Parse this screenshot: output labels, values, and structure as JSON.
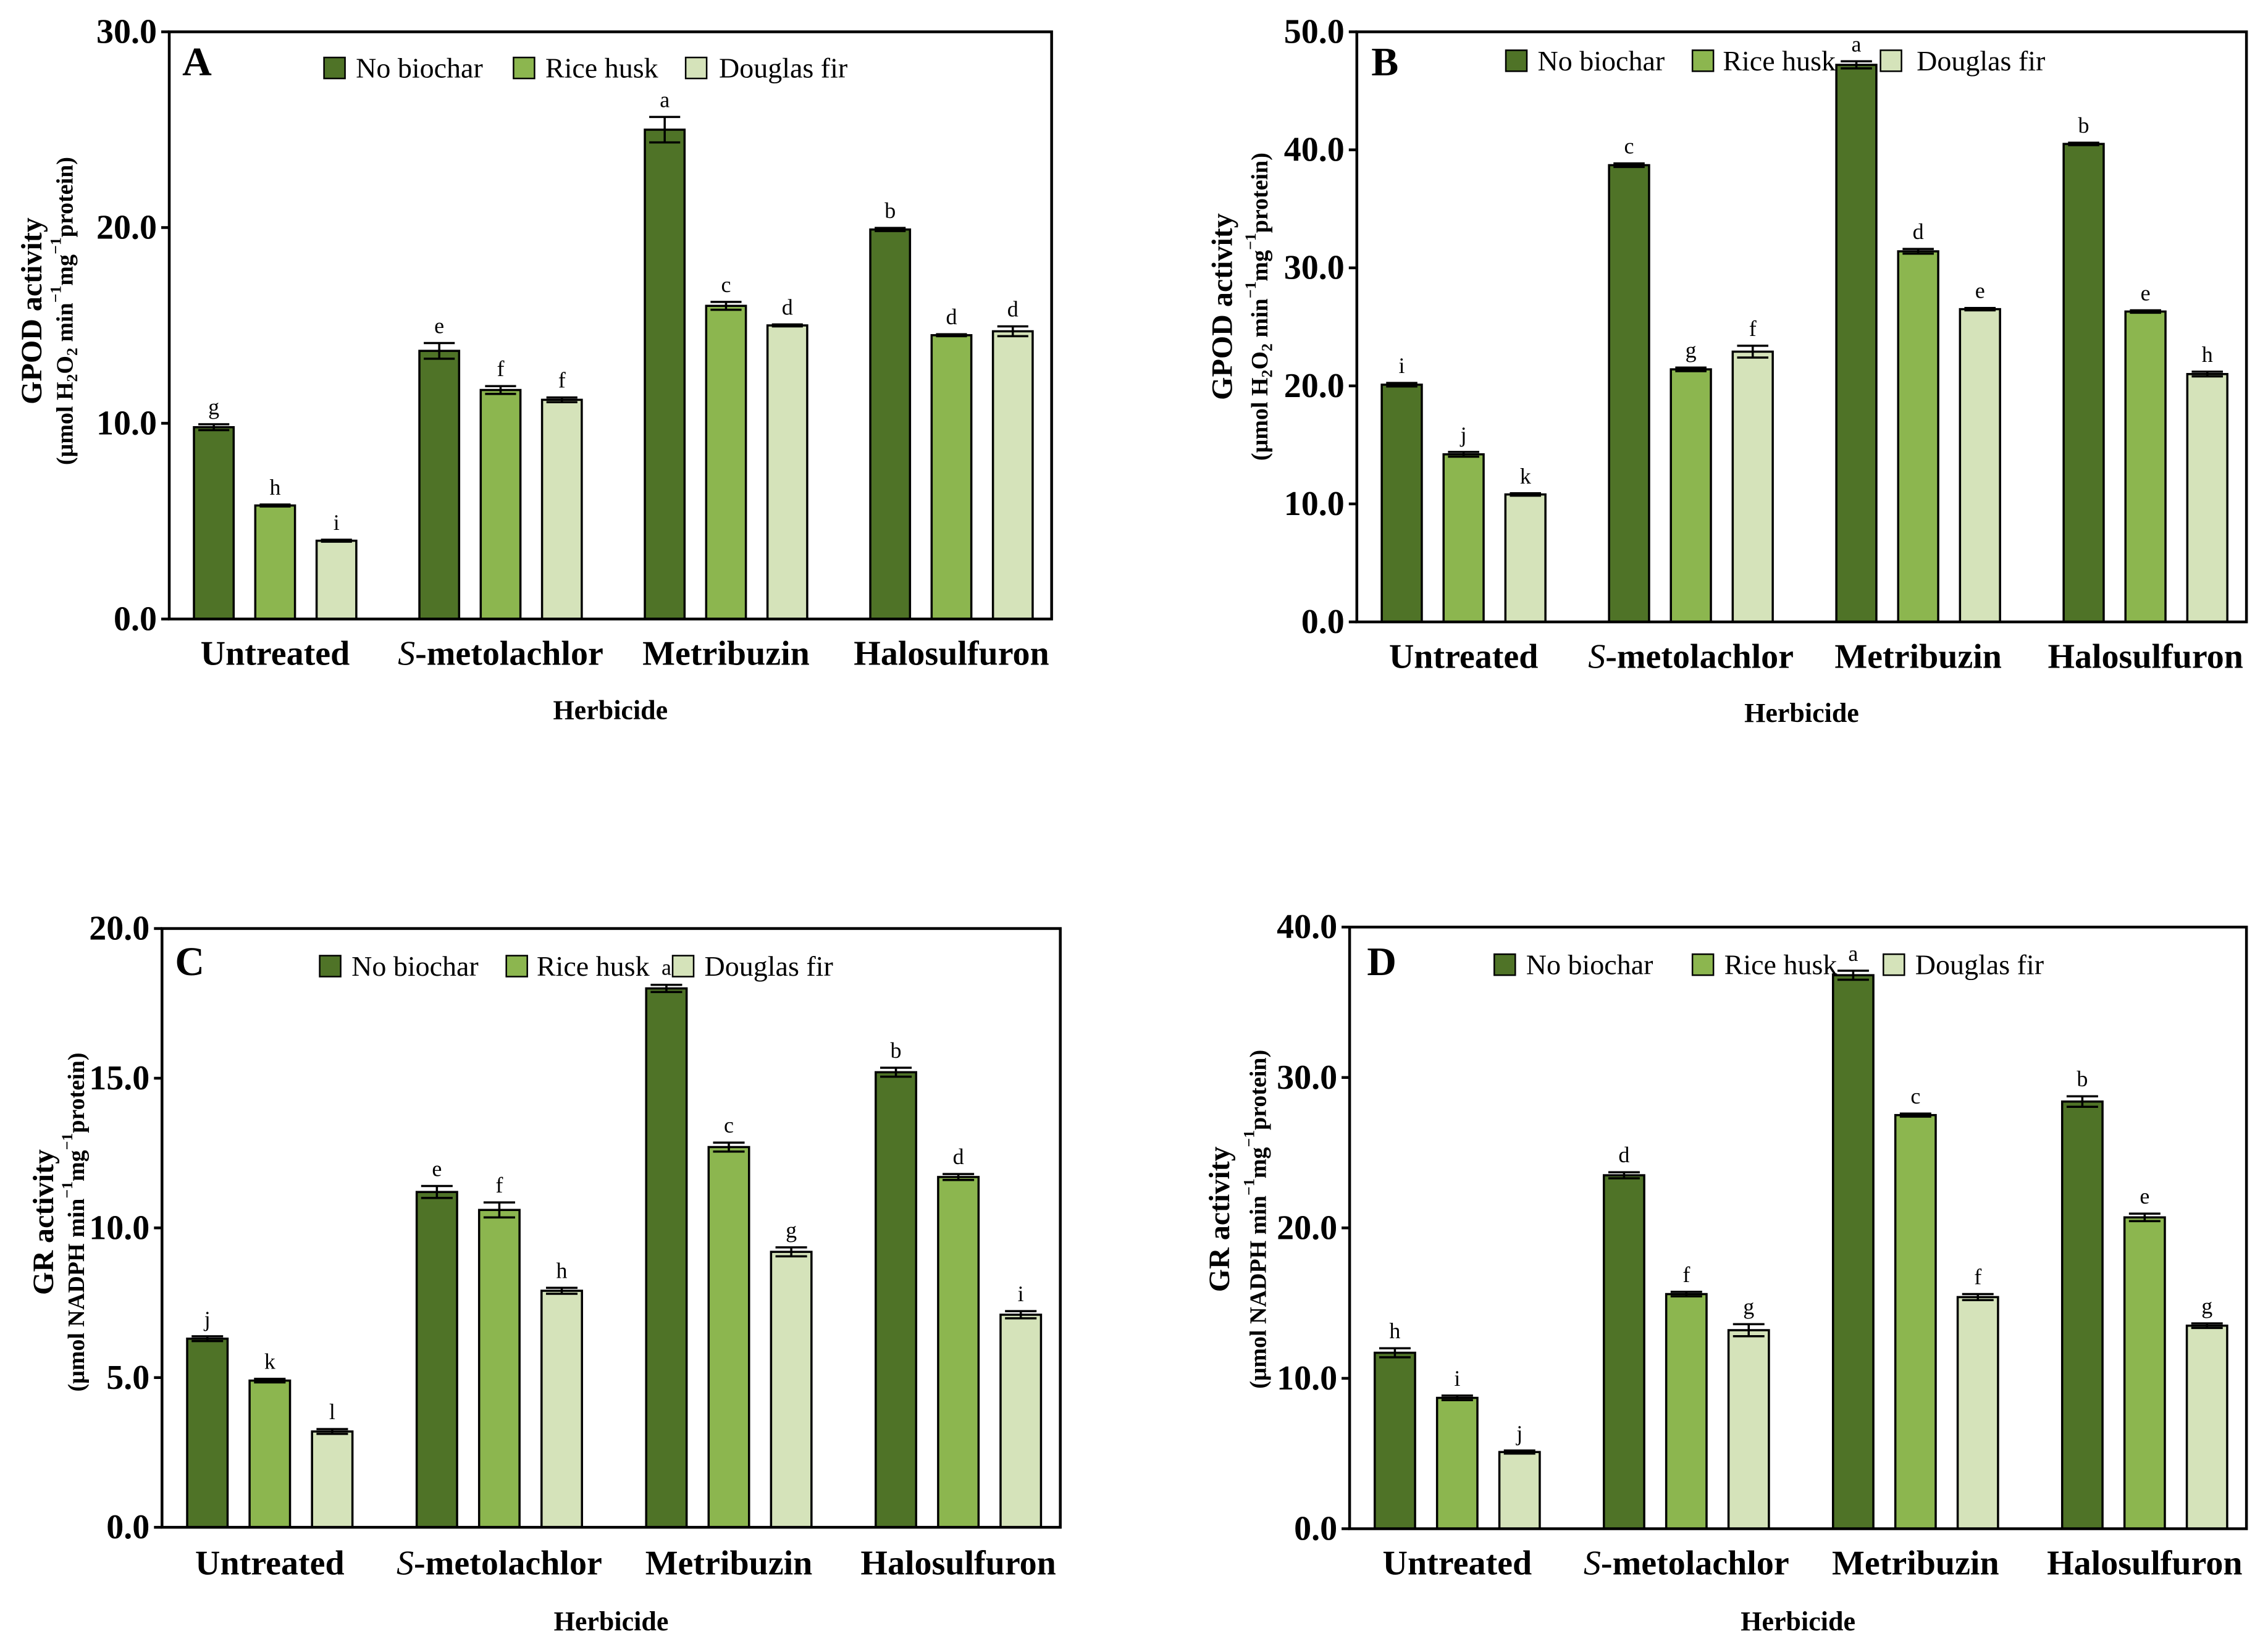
{
  "chart_data": [
    {
      "panel": "A",
      "type": "bar",
      "legend_position": "top",
      "categories": [
        "Untreated",
        "S-metolachlor",
        "Metribuzin",
        "Halosulfuron"
      ],
      "xlabel": "Herbicide",
      "ylabel": "GPOD activity",
      "ylabel_units": [
        {
          "text": "(μmol H"
        },
        {
          "text": "2",
          "sub": true
        },
        {
          "text": "O"
        },
        {
          "text": "2",
          "sub": true
        },
        {
          "text": " min"
        },
        {
          "text": "−1",
          "sup": true
        },
        {
          "text": "mg"
        },
        {
          "text": "−1",
          "sup": true
        },
        {
          "text": "protein)"
        }
      ],
      "ylim": [
        0,
        30
      ],
      "yticks": [
        0,
        10,
        20,
        30
      ],
      "ytick_labels": [
        "0.0",
        "10.0",
        "20.0",
        "30.0"
      ],
      "series": [
        {
          "name": "No biochar",
          "color": "#4f7327",
          "values": [
            9.8,
            13.7,
            25.0,
            19.9
          ],
          "errors": [
            0.15,
            0.4,
            0.65,
            0.08
          ],
          "letters": [
            "g",
            "e",
            "a",
            "b"
          ]
        },
        {
          "name": "Rice husk",
          "color": "#8cb64f",
          "values": [
            5.8,
            11.7,
            16.0,
            14.5
          ],
          "errors": [
            0.05,
            0.2,
            0.2,
            0.05
          ],
          "letters": [
            "h",
            "f",
            "c",
            "d"
          ]
        },
        {
          "name": "Douglas fir",
          "color": "#d5e3ba",
          "values": [
            4.0,
            11.2,
            15.0,
            14.7
          ],
          "errors": [
            0.05,
            0.12,
            0.05,
            0.25
          ],
          "letters": [
            "i",
            "f",
            "d",
            "d"
          ]
        }
      ]
    },
    {
      "panel": "B",
      "type": "bar",
      "legend_position": "top",
      "categories": [
        "Untreated",
        "S-metolachlor",
        "Metribuzin",
        "Halosulfuron"
      ],
      "xlabel": "Herbicide",
      "ylabel": "GPOD activity",
      "ylabel_units": [
        {
          "text": "(μmol H"
        },
        {
          "text": "2",
          "sub": true
        },
        {
          "text": "O"
        },
        {
          "text": "2",
          "sub": true
        },
        {
          "text": " min"
        },
        {
          "text": "−1",
          "sup": true
        },
        {
          "text": "mg"
        },
        {
          "text": "−1",
          "sup": true
        },
        {
          "text": "protein)"
        }
      ],
      "ylim": [
        0,
        50
      ],
      "yticks": [
        0,
        10,
        20,
        30,
        40,
        50
      ],
      "ytick_labels": [
        "0.0",
        "10.0",
        "20.0",
        "30.0",
        "40.0",
        "50.0"
      ],
      "series": [
        {
          "name": "No biochar",
          "color": "#4f7327",
          "values": [
            20.1,
            38.7,
            47.2,
            40.5
          ],
          "errors": [
            0.15,
            0.15,
            0.3,
            0.1
          ],
          "letters": [
            "i",
            "c",
            "a",
            "b"
          ]
        },
        {
          "name": "Rice husk",
          "color": "#8cb64f",
          "values": [
            14.2,
            21.4,
            31.4,
            26.3
          ],
          "errors": [
            0.2,
            0.15,
            0.2,
            0.1
          ],
          "letters": [
            "j",
            "g",
            "d",
            "e"
          ]
        },
        {
          "name": "Douglas fir",
          "color": "#d5e3ba",
          "values": [
            10.8,
            22.9,
            26.5,
            21.0
          ],
          "errors": [
            0.1,
            0.5,
            0.1,
            0.2
          ],
          "letters": [
            "k",
            "f",
            "e",
            "h"
          ]
        }
      ]
    },
    {
      "panel": "C",
      "type": "bar",
      "legend_position": "top",
      "categories": [
        "Untreated",
        "S-metolachlor",
        "Metribuzin",
        "Halosulfuron"
      ],
      "xlabel": "Herbicide",
      "ylabel": "GR activity",
      "ylabel_units": [
        {
          "text": "(μmol NADPH min"
        },
        {
          "text": "−1",
          "sup": true
        },
        {
          "text": "mg"
        },
        {
          "text": "−1",
          "sup": true
        },
        {
          "text": "protein)"
        }
      ],
      "ylim": [
        0,
        20
      ],
      "yticks": [
        0,
        5,
        10,
        15,
        20
      ],
      "ytick_labels": [
        "0.0",
        "5.0",
        "10.0",
        "15.0",
        "20.0"
      ],
      "series": [
        {
          "name": "No biochar",
          "color": "#4f7327",
          "values": [
            6.3,
            11.2,
            18.0,
            15.2
          ],
          "errors": [
            0.08,
            0.2,
            0.12,
            0.15
          ],
          "letters": [
            "j",
            "e",
            "a",
            "b"
          ]
        },
        {
          "name": "Rice husk",
          "color": "#8cb64f",
          "values": [
            4.9,
            10.6,
            12.7,
            11.7
          ],
          "errors": [
            0.06,
            0.25,
            0.15,
            0.1
          ],
          "letters": [
            "k",
            "f",
            "c",
            "d"
          ]
        },
        {
          "name": "Douglas fir",
          "color": "#d5e3ba",
          "values": [
            3.2,
            7.9,
            9.2,
            7.1
          ],
          "errors": [
            0.08,
            0.1,
            0.15,
            0.12
          ],
          "letters": [
            "l",
            "h",
            "g",
            "i"
          ]
        }
      ]
    },
    {
      "panel": "D",
      "type": "bar",
      "legend_position": "top",
      "categories": [
        "Untreated",
        "S-metolachlor",
        "Metribuzin",
        "Halosulfuron"
      ],
      "xlabel": "Herbicide",
      "ylabel": "GR activity",
      "ylabel_units": [
        {
          "text": "(μmol NADPH min"
        },
        {
          "text": "−1",
          "sup": true
        },
        {
          "text": "mg"
        },
        {
          "text": "−1",
          "sup": true
        },
        {
          "text": "protein)"
        }
      ],
      "ylim": [
        0,
        40
      ],
      "yticks": [
        0,
        10,
        20,
        30,
        40
      ],
      "ytick_labels": [
        "0.0",
        "10.0",
        "20.0",
        "30.0",
        "40.0"
      ],
      "series": [
        {
          "name": "No biochar",
          "color": "#4f7327",
          "values": [
            11.7,
            23.5,
            36.8,
            28.4
          ],
          "errors": [
            0.3,
            0.2,
            0.3,
            0.35
          ],
          "letters": [
            "h",
            "d",
            "a",
            "b"
          ]
        },
        {
          "name": "Rice husk",
          "color": "#8cb64f",
          "values": [
            8.7,
            15.6,
            27.5,
            20.7
          ],
          "errors": [
            0.15,
            0.15,
            0.1,
            0.25
          ],
          "letters": [
            "i",
            "f",
            "c",
            "e"
          ]
        },
        {
          "name": "Douglas fir",
          "color": "#d5e3ba",
          "values": [
            5.1,
            13.2,
            15.4,
            13.5
          ],
          "errors": [
            0.1,
            0.4,
            0.2,
            0.15
          ],
          "letters": [
            "j",
            "g",
            "f",
            "g"
          ]
        }
      ]
    }
  ]
}
